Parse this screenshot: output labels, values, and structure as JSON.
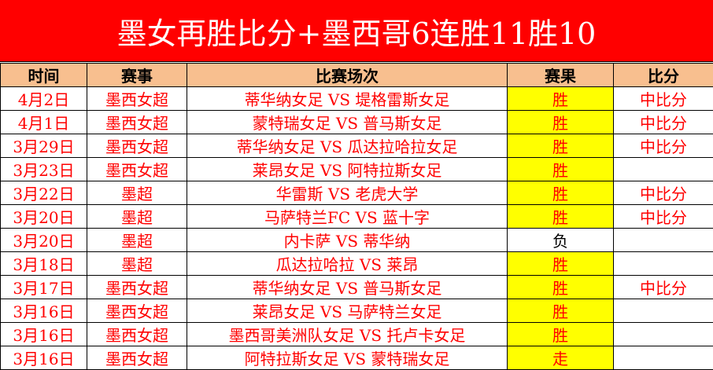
{
  "title": "墨女再胜比分+墨西哥6连胜11胜10",
  "headers": [
    "时间",
    "赛事",
    "比赛场次",
    "赛果",
    "比分"
  ],
  "colors": {
    "title_bg": "#ff0000",
    "header_bg": "#f8bf8f",
    "win_bg": "#ffff00",
    "text": "#ff0000"
  },
  "rows": [
    {
      "date": "4月2日",
      "league": "墨西女超",
      "match": "蒂华纳女足 VS 堤格雷斯女足",
      "result": "胜",
      "score": "中比分",
      "highlight": true
    },
    {
      "date": "4月1日",
      "league": "墨西女超",
      "match": "蒙特瑞女足 VS 普马斯女足",
      "result": "胜",
      "score": "中比分",
      "highlight": true
    },
    {
      "date": "3月29日",
      "league": "墨西女超",
      "match": "蒂华纳女足 VS 瓜达拉哈拉女足",
      "result": "胜",
      "score": "中比分",
      "highlight": true
    },
    {
      "date": "3月23日",
      "league": "墨西女超",
      "match": "莱昂女足 VS 阿特拉斯女足",
      "result": "胜",
      "score": "",
      "highlight": true
    },
    {
      "date": "3月22日",
      "league": "墨超",
      "match": "华雷斯 VS 老虎大学",
      "result": "胜",
      "score": "中比分",
      "highlight": true
    },
    {
      "date": "3月20日",
      "league": "墨超",
      "match": "马萨特兰FC VS 蓝十字",
      "result": "胜",
      "score": "中比分",
      "highlight": true
    },
    {
      "date": "3月20日",
      "league": "墨超",
      "match": "内卡萨 VS 蒂华纳",
      "result": "负",
      "score": "",
      "highlight": false
    },
    {
      "date": "3月18日",
      "league": "墨超",
      "match": "瓜达拉哈拉 VS 莱昂",
      "result": "胜",
      "score": "",
      "highlight": true
    },
    {
      "date": "3月17日",
      "league": "墨西女超",
      "match": "蒂华纳女足 VS 普马斯女足",
      "result": "胜",
      "score": "中比分",
      "highlight": true
    },
    {
      "date": "3月16日",
      "league": "墨西女超",
      "match": "莱昂女足 VS 马萨特兰女足",
      "result": "胜",
      "score": "",
      "highlight": true
    },
    {
      "date": "3月16日",
      "league": "墨西女超",
      "match": "墨西哥美洲队女足 VS 托卢卡女足",
      "result": "胜",
      "score": "",
      "highlight": true
    },
    {
      "date": "3月16日",
      "league": "墨西女超",
      "match": "阿特拉斯女足 VS 蒙特瑞女足",
      "result": "走",
      "score": "",
      "highlight": true
    }
  ]
}
